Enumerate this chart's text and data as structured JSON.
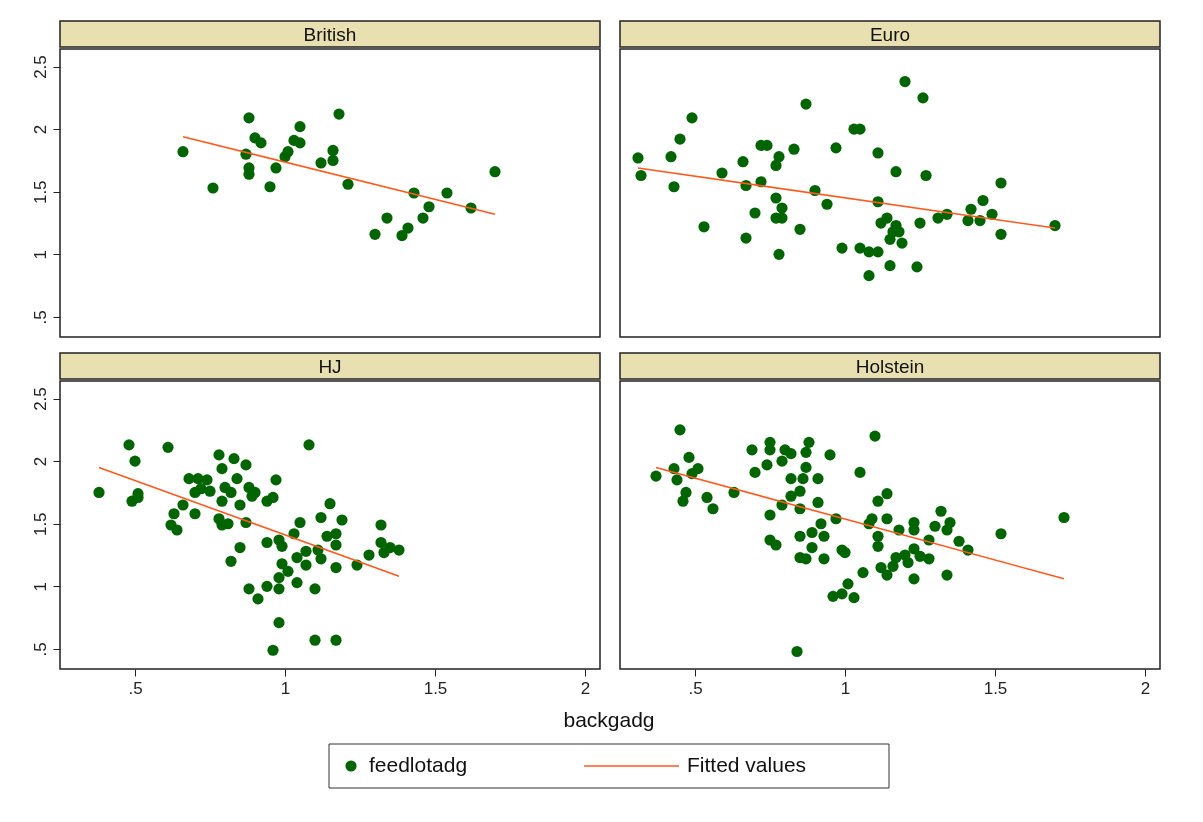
{
  "chart_data": [
    {
      "type": "scatter",
      "title": "British",
      "xlim": [
        0.25,
        2.05
      ],
      "ylim": [
        0.34,
        2.64
      ],
      "xticks": [
        0.5,
        1,
        1.5,
        2
      ],
      "yticks": [
        {
          "value": 0.5,
          "label": ".5"
        },
        1,
        1.5,
        2,
        2.5
      ],
      "tick_labels": "y",
      "grid": false,
      "legend": "bottom",
      "marker": "circle",
      "series": [
        {
          "name": "feedlotadg",
          "color": "#006400",
          "x": [
            0.66,
            0.76,
            0.88,
            0.9,
            0.92,
            0.87,
            0.88,
            0.88,
            0.95,
            0.97,
            1.0,
            1.01,
            1.03,
            1.05,
            1.05,
            1.12,
            1.16,
            1.16,
            1.18,
            1.21,
            1.3,
            1.34,
            1.39,
            1.41,
            1.43,
            1.46,
            1.48,
            1.54,
            1.62,
            1.7
          ],
          "values": [
            1.82,
            1.53,
            2.09,
            1.93,
            1.89,
            1.8,
            1.69,
            1.64,
            1.54,
            1.69,
            1.78,
            1.82,
            1.91,
            2.02,
            1.89,
            1.73,
            1.83,
            1.75,
            2.12,
            1.56,
            1.16,
            1.29,
            1.15,
            1.21,
            1.49,
            1.29,
            1.38,
            1.49,
            1.37,
            1.66
          ]
        },
        {
          "name": "Fitted values",
          "type": "line",
          "marker": "none",
          "color": "#ff5a1e",
          "x": [
            0.66,
            1.7
          ],
          "values": [
            1.94,
            1.32
          ]
        }
      ]
    },
    {
      "type": "scatter",
      "title": "Euro",
      "xlim": [
        0.25,
        2.05
      ],
      "ylim": [
        0.34,
        2.64
      ],
      "xticks": [
        0.5,
        1,
        1.5,
        2
      ],
      "yticks": [
        0.5,
        1,
        1.5,
        2,
        2.5
      ],
      "tick_labels": false,
      "grid": false,
      "marker": "circle",
      "series": [
        {
          "color": "#006400",
          "x": [
            0.31,
            0.32,
            0.42,
            0.43,
            0.45,
            0.49,
            0.53,
            0.59,
            0.66,
            0.67,
            0.67,
            0.7,
            0.72,
            0.74,
            0.72,
            0.77,
            0.78,
            0.77,
            0.79,
            0.77,
            0.79,
            0.78,
            0.83,
            0.85,
            0.87,
            0.9,
            0.94,
            0.97,
            0.99,
            1.03,
            1.05,
            1.05,
            1.08,
            1.11,
            1.08,
            1.11,
            1.11,
            1.12,
            1.14,
            1.15,
            1.16,
            1.17,
            1.18,
            1.19,
            1.15,
            1.17,
            1.2,
            1.24,
            1.25,
            1.26,
            1.27,
            1.31,
            1.34,
            1.41,
            1.42,
            1.45,
            1.46,
            1.49,
            1.52,
            1.52,
            1.7
          ],
          "values": [
            1.77,
            1.63,
            1.78,
            1.54,
            1.92,
            2.09,
            1.22,
            1.65,
            1.74,
            1.55,
            1.13,
            1.33,
            1.87,
            1.87,
            1.58,
            1.71,
            1.78,
            1.45,
            1.37,
            1.29,
            1.29,
            1.0,
            1.84,
            1.2,
            2.2,
            1.51,
            1.4,
            1.85,
            1.05,
            2.0,
            2.0,
            1.05,
            1.02,
            1.02,
            0.83,
            1.81,
            1.42,
            1.25,
            1.29,
            1.12,
            1.18,
            1.23,
            1.18,
            1.09,
            0.91,
            1.66,
            2.38,
            0.9,
            1.25,
            2.25,
            1.63,
            1.29,
            1.32,
            1.27,
            1.36,
            1.27,
            1.43,
            1.32,
            1.57,
            1.16,
            1.23
          ]
        },
        {
          "type": "line",
          "marker": "none",
          "color": "#ff5a1e",
          "x": [
            0.31,
            1.7
          ],
          "values": [
            1.69,
            1.21
          ]
        }
      ]
    },
    {
      "type": "scatter",
      "title": "HJ",
      "xlabel": "backgadg",
      "xlim": [
        0.25,
        2.05
      ],
      "ylim": [
        0.34,
        2.64
      ],
      "xticks": [
        {
          "value": 0.5,
          "label": ".5"
        },
        1,
        1.5,
        2
      ],
      "yticks": [
        {
          "value": 0.5,
          "label": ".5"
        },
        1,
        1.5,
        2,
        2.5
      ],
      "grid": false,
      "marker": "circle",
      "series": [
        {
          "color": "#006400",
          "x": [
            0.38,
            0.48,
            0.5,
            0.49,
            0.51,
            0.51,
            0.61,
            0.63,
            0.62,
            0.64,
            0.68,
            0.7,
            0.7,
            0.71,
            0.72,
            0.74,
            0.75,
            0.66,
            0.78,
            0.79,
            0.83,
            0.87,
            0.84,
            0.8,
            0.82,
            0.79,
            0.78,
            0.79,
            0.81,
            0.87,
            0.85,
            0.89,
            0.9,
            0.88,
            0.94,
            0.96,
            0.97,
            0.85,
            0.82,
            1.08,
            1.15,
            1.12,
            1.19,
            1.05,
            1.03,
            0.94,
            0.99,
            0.98,
            1.14,
            1.17,
            1.17,
            1.11,
            1.12,
            1.07,
            1.04,
            1.07,
            0.99,
            1.01,
            1.04,
            0.98,
            0.98,
            0.94,
            0.88,
            0.91,
            1.1,
            1.17,
            1.24,
            1.28,
            1.32,
            1.32,
            1.33,
            1.35,
            1.38,
            0.98,
            0.96,
            1.1,
            1.17
          ],
          "values": [
            1.75,
            2.13,
            2.0,
            1.68,
            1.74,
            1.71,
            2.11,
            1.58,
            1.49,
            1.45,
            1.86,
            1.58,
            1.75,
            1.86,
            1.78,
            1.85,
            1.76,
            1.65,
            2.05,
            1.94,
            2.02,
            1.97,
            1.86,
            1.79,
            1.75,
            1.68,
            1.54,
            1.49,
            1.5,
            1.51,
            1.65,
            1.72,
            1.75,
            1.79,
            1.68,
            1.71,
            1.85,
            1.31,
            1.2,
            2.13,
            1.66,
            1.55,
            1.53,
            1.51,
            1.42,
            1.35,
            1.32,
            1.37,
            1.4,
            1.42,
            1.33,
            1.29,
            1.22,
            1.28,
            1.23,
            1.17,
            1.18,
            1.12,
            1.03,
            1.07,
            0.98,
            1.0,
            0.98,
            0.9,
            0.98,
            1.15,
            1.17,
            1.25,
            1.49,
            1.35,
            1.27,
            1.31,
            1.29,
            0.71,
            0.49,
            0.57,
            0.57
          ]
        },
        {
          "type": "line",
          "marker": "none",
          "color": "#ff5a1e",
          "x": [
            0.38,
            1.38
          ],
          "values": [
            1.95,
            1.08
          ]
        }
      ]
    },
    {
      "type": "scatter",
      "title": "Holstein",
      "xlim": [
        0.25,
        2.05
      ],
      "ylim": [
        0.34,
        2.64
      ],
      "xticks": [
        {
          "value": 0.5,
          "label": ".5"
        },
        1,
        1.5,
        2
      ],
      "yticks": [
        0.5,
        1,
        1.5,
        2,
        2.5
      ],
      "tick_labels": "x",
      "grid": false,
      "marker": "circle",
      "series": [
        {
          "color": "#006400",
          "x": [
            0.37,
            0.43,
            0.44,
            0.45,
            0.48,
            0.49,
            0.51,
            0.47,
            0.46,
            0.54,
            0.56,
            0.63,
            0.69,
            0.7,
            0.74,
            0.75,
            0.75,
            0.79,
            0.8,
            0.82,
            0.82,
            0.87,
            0.88,
            0.87,
            0.86,
            0.85,
            0.82,
            0.79,
            0.85,
            0.91,
            0.91,
            0.95,
            1.05,
            1.1,
            0.75,
            0.75,
            0.77,
            0.85,
            0.89,
            0.92,
            0.93,
            0.89,
            0.85,
            0.87,
            0.93,
            0.97,
            0.99,
            1.0,
            1.06,
            1.01,
            0.96,
            0.99,
            1.03,
            1.08,
            1.09,
            1.11,
            1.14,
            1.14,
            1.18,
            1.11,
            1.11,
            1.23,
            1.23,
            1.28,
            1.3,
            1.32,
            1.34,
            1.35,
            1.38,
            1.41,
            1.12,
            1.14,
            1.16,
            1.17,
            1.2,
            1.21,
            1.23,
            1.25,
            1.28,
            1.23,
            1.34,
            1.52,
            1.73,
            0.84
          ],
          "values": [
            1.88,
            1.94,
            1.85,
            2.25,
            2.03,
            1.9,
            1.94,
            1.75,
            1.68,
            1.71,
            1.62,
            1.75,
            2.09,
            1.91,
            1.97,
            2.15,
            2.09,
            2.0,
            2.09,
            2.06,
            1.86,
            2.07,
            2.15,
            1.95,
            1.86,
            1.76,
            1.72,
            1.65,
            1.62,
            1.67,
            1.86,
            2.05,
            1.91,
            2.2,
            1.57,
            1.37,
            1.33,
            1.4,
            1.43,
            1.5,
            1.4,
            1.31,
            1.23,
            1.22,
            1.22,
            1.54,
            1.29,
            1.27,
            1.11,
            1.02,
            0.92,
            0.94,
            0.91,
            1.5,
            1.54,
            1.68,
            1.74,
            1.54,
            1.45,
            1.4,
            1.32,
            1.51,
            1.45,
            1.37,
            1.48,
            1.6,
            1.45,
            1.51,
            1.36,
            1.29,
            1.15,
            1.09,
            1.16,
            1.23,
            1.25,
            1.19,
            1.3,
            1.24,
            1.22,
            1.06,
            1.09,
            1.42,
            1.55,
            0.48
          ]
        },
        {
          "type": "line",
          "marker": "none",
          "color": "#ff5a1e",
          "x": [
            0.37,
            1.73
          ],
          "values": [
            1.95,
            1.06
          ]
        }
      ]
    }
  ]
}
